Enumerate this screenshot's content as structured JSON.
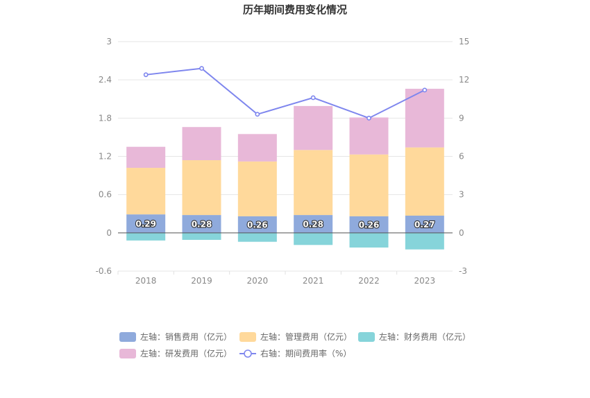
{
  "chart_data": {
    "type": "bar",
    "title": "历年期间费用变化情况",
    "categories": [
      "2018",
      "2019",
      "2020",
      "2021",
      "2022",
      "2023"
    ],
    "left_axis": {
      "ticks": [
        "3",
        "2.4",
        "1.8",
        "1.2",
        "0.6",
        "0",
        "-0.6"
      ],
      "ylim": [
        -0.6,
        3
      ]
    },
    "right_axis": {
      "ticks": [
        "15",
        "12",
        "9",
        "6",
        "3",
        "0",
        "-3"
      ],
      "ylim": [
        -3,
        15
      ]
    },
    "series": [
      {
        "name": "左轴：销售费用（亿元）",
        "kind": "bar",
        "axis": "left",
        "color": "#8FAADC",
        "values": [
          0.29,
          0.28,
          0.26,
          0.28,
          0.26,
          0.27
        ],
        "labels": [
          "0.29",
          "0.28",
          "0.26",
          "0.28",
          "0.26",
          "0.27"
        ]
      },
      {
        "name": "左轴：管理费用（亿元）",
        "kind": "bar",
        "axis": "left",
        "color": "#FFD99B",
        "values": [
          0.73,
          0.86,
          0.86,
          1.02,
          0.97,
          1.07
        ]
      },
      {
        "name": "左轴：财务费用（亿元）",
        "kind": "bar",
        "axis": "left",
        "color": "#86D4DA",
        "values": [
          -0.12,
          -0.11,
          -0.14,
          -0.19,
          -0.23,
          -0.26
        ]
      },
      {
        "name": "左轴：研发费用（亿元）",
        "kind": "bar",
        "axis": "left",
        "color": "#E8B8D8",
        "values": [
          0.33,
          0.52,
          0.43,
          0.69,
          0.58,
          0.92
        ]
      },
      {
        "name": "右轴：期间费用率（%）",
        "kind": "line",
        "axis": "right",
        "color": "#7E86EE",
        "values": [
          12.4,
          12.9,
          9.3,
          10.6,
          9.0,
          11.2
        ]
      }
    ],
    "legend_position": "bottom",
    "grid": true
  }
}
